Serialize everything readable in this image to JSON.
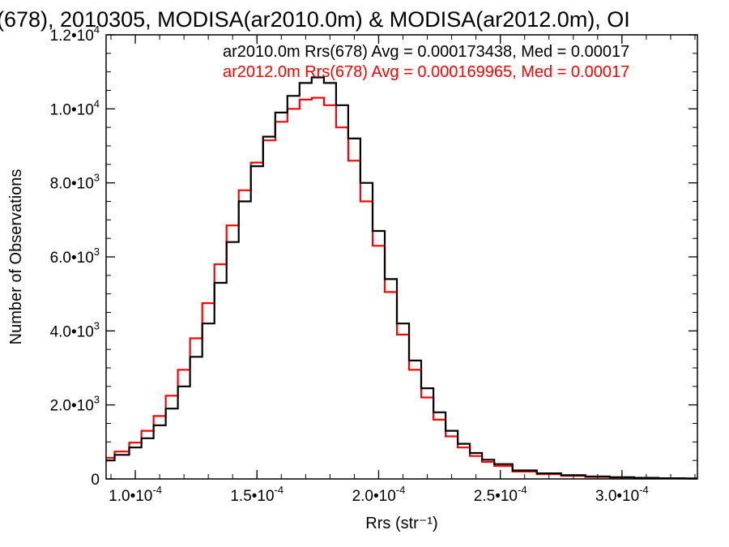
{
  "chart_data": {
    "type": "line",
    "title": "(678), 2010305, MODISA(ar2010.0m) & MODISA(ar2012.0m), OI",
    "xlabel": "Rrs (str⁻¹)",
    "ylabel": "Number of Observations",
    "xlim": [
      8.8e-05,
      0.000331
    ],
    "ylim": [
      0,
      12000
    ],
    "grid": false,
    "legend_position": "top",
    "x_ticks": [
      {
        "value": 0.0001,
        "mantissa": "1.0",
        "exp": "-4"
      },
      {
        "value": 0.00015,
        "mantissa": "1.5",
        "exp": "-4"
      },
      {
        "value": 0.0002,
        "mantissa": "2.0",
        "exp": "-4"
      },
      {
        "value": 0.00025,
        "mantissa": "2.5",
        "exp": "-4"
      },
      {
        "value": 0.0003,
        "mantissa": "3.0",
        "exp": "-4"
      }
    ],
    "y_ticks": [
      {
        "value": 0,
        "mantissa": "0",
        "exp": ""
      },
      {
        "value": 2000,
        "mantissa": "2.0",
        "exp": "3"
      },
      {
        "value": 4000,
        "mantissa": "4.0",
        "exp": "3"
      },
      {
        "value": 6000,
        "mantissa": "6.0",
        "exp": "3"
      },
      {
        "value": 8000,
        "mantissa": "8.0",
        "exp": "3"
      },
      {
        "value": 10000,
        "mantissa": "1.0",
        "exp": "4"
      },
      {
        "value": 12000,
        "mantissa": "1.2",
        "exp": "4"
      }
    ],
    "x": [
      8.8e-05,
      9.5e-05,
      0.0001,
      0.000105,
      0.00011,
      0.000115,
      0.00012,
      0.000125,
      0.00013,
      0.000135,
      0.00014,
      0.000145,
      0.00015,
      0.000155,
      0.00016,
      0.000165,
      0.00017,
      0.000175,
      0.00018,
      0.000185,
      0.00019,
      0.000195,
      0.0002,
      0.000205,
      0.00021,
      0.000215,
      0.00022,
      0.000225,
      0.00023,
      0.000235,
      0.00024,
      0.000245,
      0.00025,
      0.00026,
      0.00027,
      0.00028,
      0.00029,
      0.0003,
      0.00031,
      0.00032,
      0.000331
    ],
    "series": [
      {
        "name": "ar2010.0m Rrs(678) Avg = 0.000173438, Med = 0.00017",
        "color": "#000000",
        "values": [
          500,
          650,
          850,
          1100,
          1450,
          1900,
          2500,
          3300,
          4200,
          5300,
          6400,
          7500,
          8450,
          9250,
          9900,
          10350,
          10700,
          10850,
          10700,
          10100,
          9200,
          8000,
          6700,
          5400,
          4200,
          3200,
          2450,
          1800,
          1300,
          950,
          700,
          520,
          400,
          230,
          150,
          100,
          65,
          45,
          30,
          20,
          15
        ]
      },
      {
        "name": "ar2012.0m Rrs(678) Avg = 0.000169965, Med = 0.00017",
        "color": "#ff0000",
        "values": [
          570,
          740,
          980,
          1300,
          1700,
          2250,
          2950,
          3800,
          4750,
          5800,
          6850,
          7800,
          8550,
          9150,
          9650,
          10000,
          10250,
          10300,
          10100,
          9500,
          8600,
          7500,
          6300,
          5050,
          3900,
          2950,
          2200,
          1600,
          1150,
          850,
          620,
          460,
          350,
          200,
          130,
          85,
          55,
          40,
          25,
          15,
          10
        ]
      }
    ]
  }
}
